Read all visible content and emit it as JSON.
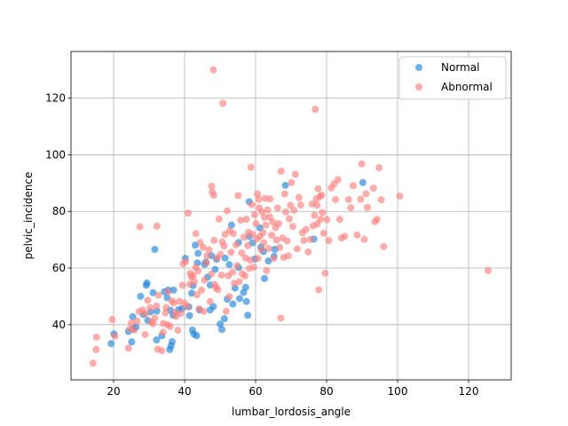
{
  "chart_data": {
    "type": "scatter",
    "title": "",
    "xlabel": "lumbar_lordosis_angle",
    "ylabel": "pelvic_incidence",
    "xlim": [
      8,
      132
    ],
    "ylim": [
      20.5,
      136.5
    ],
    "xticks": [
      20,
      40,
      60,
      80,
      100,
      120
    ],
    "yticks": [
      40,
      60,
      80,
      100,
      120
    ],
    "grid": true,
    "legend_position": "top-right",
    "series": [
      {
        "name": "Normal",
        "color": "#1f84d8",
        "points": [
          [
            19.3,
            33.3
          ],
          [
            20.1,
            36.7
          ],
          [
            24.2,
            37.6
          ],
          [
            25.1,
            33.9
          ],
          [
            25.6,
            38.5
          ],
          [
            26.3,
            39.1
          ],
          [
            25.4,
            42.8
          ],
          [
            27.6,
            50.0
          ],
          [
            28.4,
            43.6
          ],
          [
            29.2,
            53.9
          ],
          [
            29.4,
            54.7
          ],
          [
            29.6,
            41.5
          ],
          [
            30.4,
            44.5
          ],
          [
            31.1,
            51.3
          ],
          [
            31.6,
            66.6
          ],
          [
            32.1,
            34.6
          ],
          [
            32.2,
            44.8
          ],
          [
            33.6,
            36.1
          ],
          [
            34.3,
            51.6
          ],
          [
            35.4,
            52.2
          ],
          [
            35.1,
            49.5
          ],
          [
            35.8,
            31.2
          ],
          [
            36.2,
            32.5
          ],
          [
            36.5,
            34.0
          ],
          [
            36.0,
            45.1
          ],
          [
            36.8,
            43.3
          ],
          [
            36.9,
            52.2
          ],
          [
            38.3,
            45.3
          ],
          [
            39.3,
            45.7
          ],
          [
            40.2,
            63.4
          ],
          [
            41.2,
            46.3
          ],
          [
            41.4,
            43.2
          ],
          [
            42.0,
            51.1
          ],
          [
            42.2,
            38.1
          ],
          [
            42.4,
            53.8
          ],
          [
            42.6,
            36.7
          ],
          [
            43.0,
            68.1
          ],
          [
            43.4,
            36.1
          ],
          [
            43.8,
            65.2
          ],
          [
            43.6,
            61.8
          ],
          [
            44.2,
            45.2
          ],
          [
            45.6,
            61.3
          ],
          [
            46.0,
            62.1
          ],
          [
            46.5,
            56.8
          ],
          [
            47.2,
            54.0
          ],
          [
            47.2,
            45.2
          ],
          [
            47.5,
            64.4
          ],
          [
            48.1,
            46.4
          ],
          [
            48.6,
            59.5
          ],
          [
            49.0,
            63.1
          ],
          [
            50.0,
            40.2
          ],
          [
            50.5,
            38.3
          ],
          [
            51.2,
            42.1
          ],
          [
            51.4,
            63.5
          ],
          [
            52.0,
            49.0
          ],
          [
            52.6,
            61.2
          ],
          [
            53.2,
            75.2
          ],
          [
            53.6,
            47.3
          ],
          [
            54.2,
            52.9
          ],
          [
            55.2,
            60.2
          ],
          [
            55.5,
            49.2
          ],
          [
            55.2,
            69.0
          ],
          [
            56.6,
            51.4
          ],
          [
            57.2,
            53.2
          ],
          [
            57.4,
            48.2
          ],
          [
            57.8,
            43.3
          ],
          [
            58.2,
            83.4
          ],
          [
            58.2,
            71.2
          ],
          [
            59.1,
            68.9
          ],
          [
            59.8,
            63.2
          ],
          [
            61.2,
            74.2
          ],
          [
            61.5,
            67.4
          ],
          [
            62.2,
            65.8
          ],
          [
            62.5,
            56.3
          ],
          [
            63.6,
            62.5
          ],
          [
            65.2,
            64.1
          ],
          [
            65.4,
            66.6
          ],
          [
            68.4,
            89.2
          ],
          [
            76.4,
            70.2
          ],
          [
            90.2,
            90.2
          ]
        ]
      },
      {
        "name": "Abnormal",
        "color": "#ff7f7e",
        "points": [
          [
            14.2,
            26.4
          ],
          [
            15.2,
            35.6
          ],
          [
            15.1,
            31.2
          ],
          [
            19.6,
            41.8
          ],
          [
            20.4,
            35.9
          ],
          [
            24.2,
            31.7
          ],
          [
            24.6,
            38.5
          ],
          [
            25.0,
            40.6
          ],
          [
            25.8,
            38.1
          ],
          [
            26.6,
            41.2
          ],
          [
            27.2,
            44.6
          ],
          [
            27.4,
            74.6
          ],
          [
            28.2,
            45.2
          ],
          [
            28.9,
            36.5
          ],
          [
            29.0,
            43.9
          ],
          [
            29.6,
            48.6
          ],
          [
            30.3,
            46.0
          ],
          [
            30.6,
            41.0
          ],
          [
            31.1,
            40.3
          ],
          [
            31.6,
            42.3
          ],
          [
            32.1,
            46.6
          ],
          [
            32.2,
            74.8
          ],
          [
            32.4,
            31.3
          ],
          [
            32.6,
            50.4
          ],
          [
            33.6,
            30.8
          ],
          [
            33.9,
            37.3
          ],
          [
            34.0,
            40.4
          ],
          [
            34.6,
            44.1
          ],
          [
            34.8,
            46.0
          ],
          [
            35.3,
            51.6
          ],
          [
            35.2,
            40.0
          ],
          [
            35.9,
            39.4
          ],
          [
            36.4,
            48.4
          ],
          [
            36.9,
            47.7
          ],
          [
            37.3,
            44.3
          ],
          [
            37.6,
            42.9
          ],
          [
            38.1,
            38.0
          ],
          [
            38.5,
            48.2
          ],
          [
            38.9,
            44.0
          ],
          [
            39.4,
            53.9
          ],
          [
            39.6,
            61.5
          ],
          [
            40.0,
            47.6
          ],
          [
            40.7,
            46.4
          ],
          [
            40.3,
            62.3
          ],
          [
            41.0,
            79.4
          ],
          [
            41.6,
            58.1
          ],
          [
            41.5,
            54.3
          ],
          [
            41.9,
            56.9
          ],
          [
            42.4,
            57.3
          ],
          [
            42.8,
            55.2
          ],
          [
            43.1,
            60.2
          ],
          [
            43.5,
            50.6
          ],
          [
            43.2,
            72.2
          ],
          [
            43.8,
            59.0
          ],
          [
            44.1,
            45.6
          ],
          [
            44.4,
            69.0
          ],
          [
            44.8,
            52.2
          ],
          [
            45.2,
            67.3
          ],
          [
            45.4,
            44.7
          ],
          [
            45.6,
            55.7
          ],
          [
            46.1,
            61.8
          ],
          [
            46.3,
            64.3
          ],
          [
            46.9,
            66.4
          ],
          [
            47.2,
            48.2
          ],
          [
            47.6,
            57.9
          ],
          [
            47.8,
            86.9
          ],
          [
            47.6,
            88.9
          ],
          [
            48.1,
            130.0
          ],
          [
            48.3,
            69.8
          ],
          [
            48.2,
            85.7
          ],
          [
            48.5,
            54.2
          ],
          [
            48.8,
            53.1
          ],
          [
            49.1,
            63.6
          ],
          [
            49.4,
            52.4
          ],
          [
            49.7,
            77.3
          ],
          [
            50.1,
            64.8
          ],
          [
            50.4,
            57.5
          ],
          [
            50.6,
            69.2
          ],
          [
            50.8,
            118.2
          ],
          [
            51.1,
            67.8
          ],
          [
            51.4,
            71.9
          ],
          [
            51.7,
            44.7
          ],
          [
            52.0,
            80.2
          ],
          [
            52.3,
            57.3
          ],
          [
            52.6,
            49.9
          ],
          [
            52.7,
            73.2
          ],
          [
            53.1,
            65.6
          ],
          [
            53.5,
            58.5
          ],
          [
            53.7,
            72.2
          ],
          [
            54.0,
            54.6
          ],
          [
            54.5,
            68.2
          ],
          [
            54.8,
            60.8
          ],
          [
            55.1,
            85.6
          ],
          [
            55.4,
            55.2
          ],
          [
            55.8,
            76.9
          ],
          [
            56.1,
            65.3
          ],
          [
            56.3,
            58.0
          ],
          [
            56.7,
            70.9
          ],
          [
            57.0,
            57.2
          ],
          [
            57.2,
            63.5
          ],
          [
            57.4,
            77.2
          ],
          [
            57.8,
            67.9
          ],
          [
            58.0,
            72.6
          ],
          [
            58.2,
            59.9
          ],
          [
            58.5,
            62.8
          ],
          [
            58.7,
            95.6
          ],
          [
            58.9,
            82.4
          ],
          [
            59.1,
            71.9
          ],
          [
            59.5,
            60.3
          ],
          [
            59.7,
            78.8
          ],
          [
            60.1,
            75.7
          ],
          [
            60.3,
            70.2
          ],
          [
            60.5,
            86.2
          ],
          [
            60.7,
            63.4
          ],
          [
            60.9,
            84.3
          ],
          [
            61.0,
            81.3
          ],
          [
            61.2,
            71.2
          ],
          [
            61.6,
            66.4
          ],
          [
            61.8,
            79.8
          ],
          [
            62.1,
            72.5
          ],
          [
            62.3,
            68.9
          ],
          [
            62.5,
            77.9
          ],
          [
            62.7,
            84.6
          ],
          [
            62.9,
            75.2
          ],
          [
            63.1,
            59.1
          ],
          [
            63.4,
            80.5
          ],
          [
            63.7,
            66.9
          ],
          [
            64.0,
            78.0
          ],
          [
            64.1,
            84.4
          ],
          [
            64.5,
            71.6
          ],
          [
            64.8,
            76.3
          ],
          [
            65.1,
            63.4
          ],
          [
            65.6,
            74.3
          ],
          [
            65.9,
            69.9
          ],
          [
            66.2,
            81.2
          ],
          [
            66.5,
            75.7
          ],
          [
            66.8,
            67.3
          ],
          [
            67.2,
            94.2
          ],
          [
            67.1,
            42.3
          ],
          [
            67.6,
            70.6
          ],
          [
            67.9,
            63.8
          ],
          [
            68.2,
            86.2
          ],
          [
            68.5,
            79.8
          ],
          [
            68.9,
            69.6
          ],
          [
            69.2,
            64.3
          ],
          [
            69.5,
            77.4
          ],
          [
            69.8,
            82.2
          ],
          [
            70.1,
            90.2
          ],
          [
            70.5,
            74.7
          ],
          [
            70.8,
            80.4
          ],
          [
            71.2,
            93.1
          ],
          [
            71.7,
            66.8
          ],
          [
            72.2,
            84.9
          ],
          [
            72.7,
            82.3
          ],
          [
            73.2,
            72.5
          ],
          [
            73.6,
            69.8
          ],
          [
            74.2,
            73.6
          ],
          [
            74.8,
            65.7
          ],
          [
            75.4,
            70.1
          ],
          [
            75.9,
            82.6
          ],
          [
            76.2,
            74.9
          ],
          [
            76.6,
            78.6
          ],
          [
            76.8,
            116.1
          ],
          [
            77.1,
            84.4
          ],
          [
            77.3,
            82.2
          ],
          [
            77.6,
            88.0
          ],
          [
            77.4,
            75.6
          ],
          [
            77.8,
            52.3
          ],
          [
            78.1,
            85.2
          ],
          [
            78.3,
            77.2
          ],
          [
            78.6,
            85.8
          ],
          [
            78.8,
            79.6
          ],
          [
            79.2,
            72.3
          ],
          [
            79.6,
            58.2
          ],
          [
            80.1,
            77.1
          ],
          [
            80.6,
            69.7
          ],
          [
            81.3,
            88.3
          ],
          [
            82.1,
            89.7
          ],
          [
            82.5,
            84.2
          ],
          [
            83.2,
            91.2
          ],
          [
            83.7,
            77.2
          ],
          [
            84.2,
            70.6
          ],
          [
            85.1,
            71.2
          ],
          [
            86.2,
            84.2
          ],
          [
            86.8,
            81.3
          ],
          [
            87.5,
            89.1
          ],
          [
            88.6,
            71.7
          ],
          [
            89.6,
            84.3
          ],
          [
            89.9,
            96.8
          ],
          [
            90.6,
            70.1
          ],
          [
            91.1,
            86.2
          ],
          [
            91.5,
            81.4
          ],
          [
            93.2,
            88.2
          ],
          [
            93.6,
            76.4
          ],
          [
            94.2,
            77.2
          ],
          [
            94.8,
            95.4
          ],
          [
            95.4,
            84.1
          ],
          [
            96.1,
            67.6
          ],
          [
            100.6,
            85.4
          ],
          [
            125.5,
            59.1
          ]
        ]
      }
    ]
  }
}
